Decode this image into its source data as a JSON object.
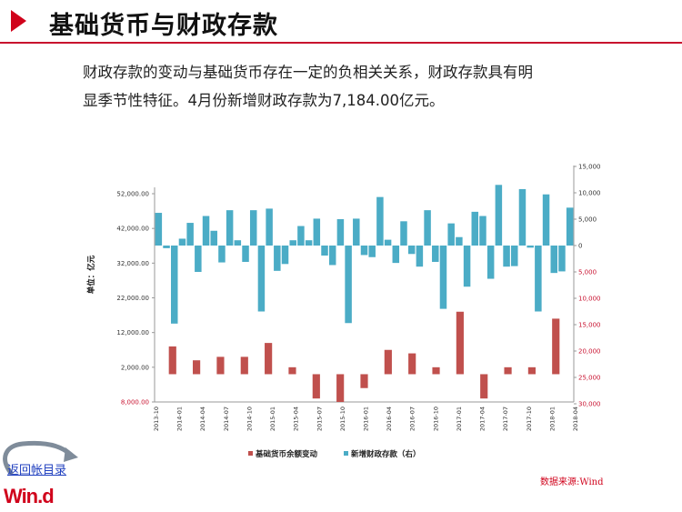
{
  "header": {
    "title": "基础货币与财政存款",
    "accent_color": "#d0021b",
    "arrow_icon": "right-triangle-icon"
  },
  "description": {
    "line1": "财政存款的变动与基础货币存在一定的负相关关系，财政存款具有明",
    "line2": "显季节性特征。4月份新增财政存款为7,184.00亿元。"
  },
  "footer": {
    "back_link": "返回帐目录",
    "logo_text": "Win.d",
    "source": "数据来源:Wind"
  },
  "chart_data": {
    "type": "bar",
    "ylabel_left": "单位：亿元",
    "left_axis": {
      "ticks": [
        -8000,
        2000,
        12000,
        22000,
        32000,
        42000,
        52000
      ],
      "tick_labels": [
        "8,000.00",
        "2,000.00",
        "12,000.00",
        "22,000.00",
        "32,000.00",
        "42,000.00",
        "52,000.00"
      ],
      "negative_color": "#c8102e"
    },
    "right_axis": {
      "ticks": [
        15000,
        10000,
        5000,
        0,
        -5000,
        -10000,
        -15000,
        -20000,
        -25000,
        -30000
      ],
      "tick_labels": [
        "15,000",
        "10,000",
        "5,000",
        "0",
        "5,000",
        "10,000",
        "15,000",
        "20,000",
        "25,000",
        "30,000"
      ],
      "negative_color": "#c8102e"
    },
    "x_tick_labels": [
      "2013-10",
      "2014-01",
      "2014-04",
      "2014-07",
      "2014-10",
      "2015-01",
      "2015-04",
      "2015-07",
      "2015-10",
      "2016-01",
      "2016-04",
      "2016-07",
      "2016-10",
      "2017-01",
      "2017-04",
      "2017-07",
      "2017-10",
      "2018-01",
      "2018-04"
    ],
    "series": [
      {
        "name": "基础货币余额变动",
        "axis": "left",
        "color": "#c0504d",
        "values": [
          0,
          8000,
          0,
          4000,
          0,
          5000,
          0,
          5000,
          0,
          9000,
          0,
          2000,
          0,
          -7000,
          0,
          -8000,
          0,
          -4000,
          0,
          7000,
          0,
          6000,
          0,
          2000,
          0,
          18000,
          0,
          -7000,
          0,
          2000,
          0,
          2000,
          0,
          16000,
          0
        ]
      },
      {
        "name": "新增财政存款（右）",
        "axis": "right",
        "color": "#4bacc6",
        "values": [
          6200,
          -500,
          -14800,
          1300,
          4300,
          -5000,
          5600,
          2800,
          -3200,
          6700,
          1000,
          -3100,
          6700,
          -12500,
          7000,
          -4800,
          -3500,
          1000,
          3700,
          1000,
          5100,
          -1900,
          -3700,
          5000,
          -14700,
          5100,
          -1800,
          -2200,
          9200,
          1100,
          -3300,
          4600,
          -1600,
          -4000,
          6700,
          -3100,
          -12000,
          4200,
          1600,
          -7800,
          6400,
          5600,
          -6300,
          11500,
          -4000,
          -3900,
          10700,
          -400,
          -12500,
          9700,
          -5200,
          -4900,
          7184
        ],
        "note": "bar values estimated"
      }
    ]
  }
}
